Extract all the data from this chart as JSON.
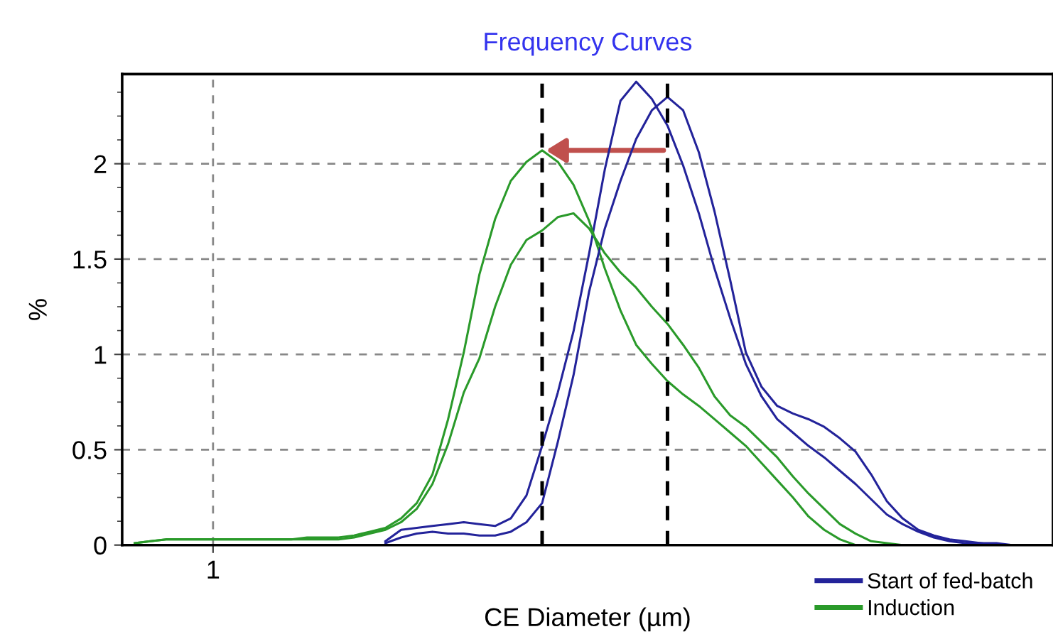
{
  "chart_data": {
    "type": "line",
    "title": "Frequency Curves",
    "xlabel": "CE Diameter (µm)",
    "ylabel": "%",
    "categories": [
      null,
      null,
      null,
      null,
      null,
      "1",
      null,
      null,
      null,
      null,
      null,
      null,
      null,
      null,
      null,
      null,
      null,
      null,
      null,
      null,
      null,
      null,
      null,
      null,
      null,
      null,
      null,
      null,
      null,
      null,
      null,
      null,
      null,
      null,
      null,
      null,
      null,
      null,
      null,
      null,
      null,
      null,
      null,
      null,
      null,
      null,
      null,
      null,
      null,
      null,
      null,
      null,
      null,
      null,
      null,
      null,
      null,
      null,
      null
    ],
    "ylim": [
      0,
      2.47
    ],
    "yticks": [
      0,
      0.5,
      1,
      1.5,
      2
    ],
    "grid": true,
    "legend": "bottom right",
    "line_style": "solid",
    "marker": "none",
    "series": [
      {
        "name": "Start of fed-batch",
        "color": "#23239a",
        "values": [
          null,
          null,
          null,
          null,
          null,
          null,
          null,
          null,
          null,
          null,
          null,
          null,
          null,
          null,
          null,
          null,
          0.02,
          0.08,
          0.09,
          0.1,
          0.11,
          0.12,
          0.11,
          0.1,
          0.14,
          0.26,
          0.52,
          0.8,
          1.12,
          1.53,
          1.97,
          2.33,
          2.43,
          2.34,
          2.2,
          1.99,
          1.74,
          1.45,
          1.19,
          0.95,
          0.78,
          0.66,
          0.59,
          0.52,
          0.46,
          0.39,
          0.32,
          0.24,
          0.16,
          0.11,
          0.07,
          0.04,
          0.02,
          0.01,
          0.01,
          0,
          0,
          0,
          0
        ]
      },
      {
        "name": "Induction",
        "color": "#2a9a2a",
        "values": [
          0.01,
          0.02,
          0.03,
          0.03,
          0.03,
          0.03,
          0.03,
          0.03,
          0.03,
          0.03,
          0.03,
          0.04,
          0.04,
          0.04,
          0.05,
          0.07,
          0.09,
          0.14,
          0.22,
          0.37,
          0.66,
          1.01,
          1.42,
          1.71,
          1.91,
          2.01,
          2.07,
          2.01,
          1.89,
          1.7,
          1.45,
          1.23,
          1.05,
          0.95,
          0.86,
          0.79,
          0.73,
          0.66,
          0.59,
          0.52,
          0.43,
          0.34,
          0.25,
          0.15,
          0.08,
          0.03,
          0,
          0,
          0,
          null,
          null,
          null,
          null,
          null,
          null,
          null,
          null,
          null,
          null
        ]
      },
      {
        "color": "#23239a",
        "values": [
          null,
          null,
          null,
          null,
          null,
          null,
          null,
          null,
          null,
          null,
          null,
          null,
          null,
          null,
          null,
          null,
          0.01,
          0.04,
          0.06,
          0.07,
          0.06,
          0.06,
          0.05,
          0.05,
          0.07,
          0.12,
          0.22,
          0.54,
          0.89,
          1.33,
          1.66,
          1.91,
          2.13,
          2.28,
          2.35,
          2.28,
          2.06,
          1.75,
          1.39,
          1.01,
          0.83,
          0.73,
          0.69,
          0.66,
          0.62,
          0.56,
          0.49,
          0.37,
          0.23,
          0.14,
          0.08,
          0.05,
          0.03,
          0.02,
          0.01,
          0.01,
          0,
          0,
          0
        ]
      },
      {
        "color": "#2a9a2a",
        "values": [
          0.01,
          0.02,
          0.03,
          0.03,
          0.03,
          0.03,
          0.03,
          0.03,
          0.03,
          0.03,
          0.03,
          0.03,
          0.03,
          0.03,
          0.04,
          0.06,
          0.08,
          0.12,
          0.19,
          0.32,
          0.53,
          0.8,
          0.98,
          1.25,
          1.47,
          1.6,
          1.65,
          1.72,
          1.74,
          1.66,
          1.53,
          1.43,
          1.35,
          1.25,
          1.16,
          1.05,
          0.93,
          0.78,
          0.68,
          0.62,
          0.54,
          0.46,
          0.36,
          0.27,
          0.19,
          0.11,
          0.06,
          0.02,
          0.01,
          0,
          0,
          null,
          null,
          null,
          null,
          null,
          null,
          null,
          null
        ]
      }
    ]
  }
}
